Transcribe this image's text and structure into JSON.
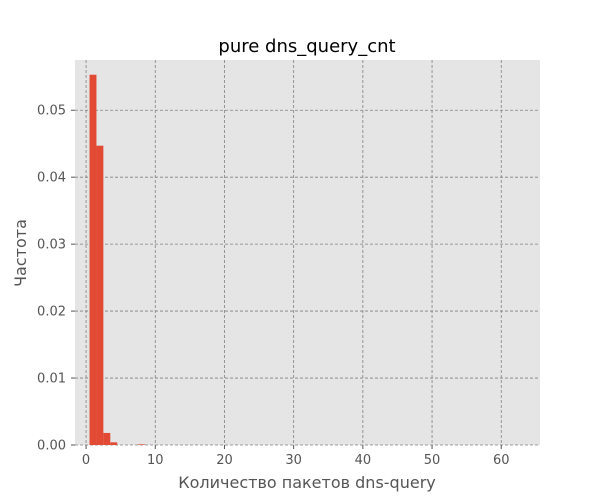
{
  "chart_data": {
    "type": "bar",
    "title": "pure dns_query_cnt",
    "xlabel": "Количество пакетов dns-query",
    "ylabel": "Частота",
    "xlim": [
      -1.6,
      65.6
    ],
    "ylim": [
      0,
      0.0575
    ],
    "xticks": [
      "0",
      "10",
      "20",
      "30",
      "40",
      "50",
      "60"
    ],
    "xtick_values": [
      0,
      10,
      20,
      30,
      40,
      50,
      60
    ],
    "yticks": [
      "0.00",
      "0.01",
      "0.02",
      "0.03",
      "0.04",
      "0.05"
    ],
    "ytick_values": [
      0,
      0.01,
      0.02,
      0.03,
      0.04,
      0.05
    ],
    "grid": true,
    "bar_color": "#E24A33",
    "background_color": "#E5E5E5",
    "grid_color": "#808080",
    "bins": [
      {
        "x0": 0.5,
        "x1": 1.5,
        "value": 0.0553
      },
      {
        "x0": 1.5,
        "x1": 2.5,
        "value": 0.0447
      },
      {
        "x0": 2.5,
        "x1": 3.5,
        "value": 0.0018
      },
      {
        "x0": 3.5,
        "x1": 4.5,
        "value": 0.0004
      },
      {
        "x0": 7.5,
        "x1": 8.5,
        "value": 0.0001
      }
    ]
  }
}
